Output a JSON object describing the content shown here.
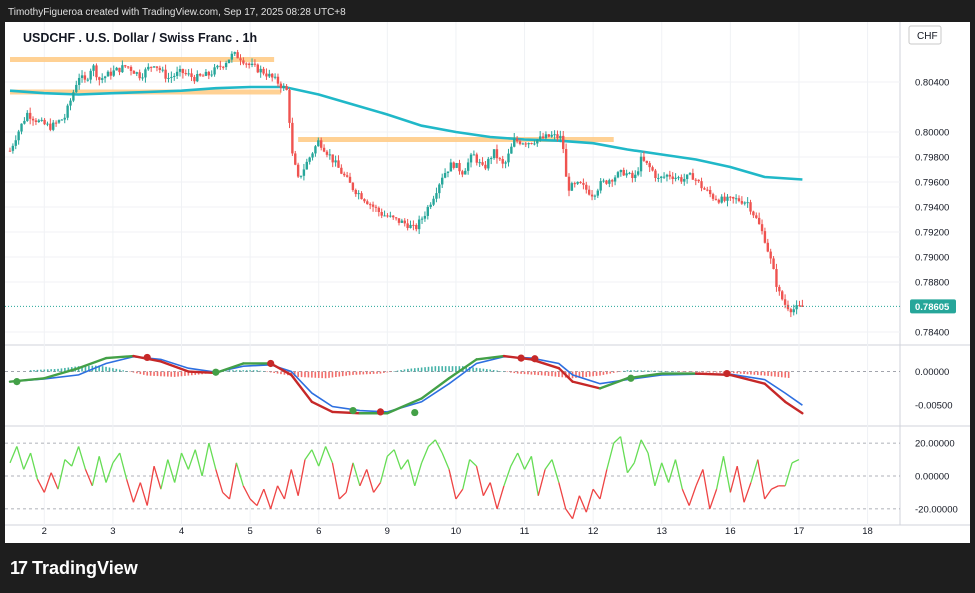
{
  "header": {
    "attribution": "TimothyFigueroa created with TradingView.com, Sep 17, 2025 08:28 UTC+8"
  },
  "footer": {
    "brand": "TradingView",
    "logo_glyph": "17"
  },
  "currency_badge": "CHF",
  "chart_data": [
    {
      "type": "candlestick",
      "title": "USDCHF . U.S. Dollar / Swiss Franc . 1h",
      "y_range": [
        0.7832,
        0.8088
      ],
      "y_ticks": [
        0.804,
        0.8,
        0.798,
        0.796,
        0.794,
        0.792,
        0.79,
        0.788,
        0.784
      ],
      "y_tick_labels": [
        "0.80400",
        "0.80000",
        "0.79800",
        "0.79600",
        "0.79400",
        "0.79200",
        "0.79000",
        "0.78800",
        "0.78400"
      ],
      "x_ticks": [
        "2",
        "3",
        "4",
        "5",
        "6",
        "9",
        "10",
        "11",
        "12",
        "13",
        "16",
        "17",
        "18"
      ],
      "x_tick_positions": [
        0.5,
        1.5,
        2.5,
        3.5,
        4.5,
        5.5,
        6.5,
        7.5,
        8.5,
        9.5,
        10.5,
        11.5,
        12.5
      ],
      "x_range": [
        0.0,
        12.9
      ],
      "last_price": 0.78605,
      "last_price_label": "0.78605",
      "up_color": "#26a69a",
      "down_color": "#ef5350",
      "price_path": [
        [
          0.0,
          0.7985
        ],
        [
          0.1,
          0.7998
        ],
        [
          0.25,
          0.8015
        ],
        [
          0.45,
          0.8007
        ],
        [
          0.6,
          0.8004
        ],
        [
          0.8,
          0.8012
        ],
        [
          0.9,
          0.8028
        ],
        [
          1.0,
          0.8045
        ],
        [
          1.1,
          0.804
        ],
        [
          1.2,
          0.8054
        ],
        [
          1.3,
          0.8042
        ],
        [
          1.5,
          0.8048
        ],
        [
          1.7,
          0.8053
        ],
        [
          1.9,
          0.8045
        ],
        [
          2.1,
          0.8055
        ],
        [
          2.3,
          0.8043
        ],
        [
          2.5,
          0.8048
        ],
        [
          2.7,
          0.8043
        ],
        [
          2.9,
          0.8046
        ],
        [
          3.1,
          0.8054
        ],
        [
          3.25,
          0.8062
        ],
        [
          3.35,
          0.806
        ],
        [
          3.5,
          0.8053
        ],
        [
          3.7,
          0.8048
        ],
        [
          3.9,
          0.804
        ],
        [
          4.05,
          0.8032
        ],
        [
          4.1,
          0.7985
        ],
        [
          4.2,
          0.7962
        ],
        [
          4.35,
          0.7978
        ],
        [
          4.5,
          0.7993
        ],
        [
          4.65,
          0.7982
        ],
        [
          4.8,
          0.797
        ],
        [
          5.0,
          0.7955
        ],
        [
          5.2,
          0.7945
        ],
        [
          5.4,
          0.7935
        ],
        [
          5.6,
          0.793
        ],
        [
          5.8,
          0.7926
        ],
        [
          5.9,
          0.7922
        ],
        [
          6.05,
          0.7935
        ],
        [
          6.2,
          0.7952
        ],
        [
          6.3,
          0.7965
        ],
        [
          6.45,
          0.7975
        ],
        [
          6.6,
          0.7968
        ],
        [
          6.75,
          0.7982
        ],
        [
          6.9,
          0.797
        ],
        [
          7.05,
          0.7984
        ],
        [
          7.2,
          0.7972
        ],
        [
          7.35,
          0.7993
        ],
        [
          7.55,
          0.7992
        ],
        [
          7.7,
          0.7994
        ],
        [
          7.9,
          0.7997
        ],
        [
          8.05,
          0.7995
        ],
        [
          8.12,
          0.7955
        ],
        [
          8.3,
          0.7958
        ],
        [
          8.5,
          0.795
        ],
        [
          8.6,
          0.7958
        ],
        [
          8.8,
          0.7964
        ],
        [
          8.95,
          0.7968
        ],
        [
          9.1,
          0.7962
        ],
        [
          9.2,
          0.7978
        ],
        [
          9.35,
          0.797
        ],
        [
          9.45,
          0.7962
        ],
        [
          9.6,
          0.7966
        ],
        [
          9.8,
          0.7962
        ],
        [
          9.95,
          0.7965
        ],
        [
          10.1,
          0.7955
        ],
        [
          10.25,
          0.7948
        ],
        [
          10.4,
          0.7945
        ],
        [
          10.6,
          0.7946
        ],
        [
          10.75,
          0.7944
        ],
        [
          10.9,
          0.7928
        ],
        [
          11.0,
          0.7915
        ],
        [
          11.1,
          0.7895
        ],
        [
          11.2,
          0.7872
        ],
        [
          11.3,
          0.7862
        ],
        [
          11.4,
          0.7858
        ],
        [
          11.55,
          0.786
        ]
      ],
      "ma_path": [
        [
          0.0,
          0.8033
        ],
        [
          0.5,
          0.8031
        ],
        [
          1.0,
          0.803
        ],
        [
          1.5,
          0.8031
        ],
        [
          2.0,
          0.8032
        ],
        [
          2.5,
          0.8033
        ],
        [
          3.0,
          0.8035
        ],
        [
          3.5,
          0.8036
        ],
        [
          4.0,
          0.8036
        ],
        [
          4.5,
          0.803
        ],
        [
          5.0,
          0.8022
        ],
        [
          5.5,
          0.8014
        ],
        [
          6.0,
          0.8005
        ],
        [
          6.5,
          0.8
        ],
        [
          7.0,
          0.7996
        ],
        [
          7.5,
          0.7994
        ],
        [
          8.0,
          0.7993
        ],
        [
          8.5,
          0.7991
        ],
        [
          9.0,
          0.7986
        ],
        [
          9.5,
          0.7982
        ],
        [
          10.0,
          0.7978
        ],
        [
          10.5,
          0.7972
        ],
        [
          11.0,
          0.7964
        ],
        [
          11.55,
          0.7962
        ]
      ],
      "ma_color": "#20b8c8",
      "zones": [
        {
          "x0": 0.0,
          "x1": 3.85,
          "y": 0.8058
        },
        {
          "x0": 0.0,
          "x1": 3.95,
          "y": 0.8032
        },
        {
          "x0": 4.2,
          "x1": 8.8,
          "y": 0.7994
        }
      ],
      "zone_color": "#ffcc88"
    },
    {
      "type": "macd",
      "y_range": [
        -0.0075,
        0.0035
      ],
      "y_ticks": [
        0.0,
        -0.005
      ],
      "y_tick_labels": [
        "0.00000",
        "-0.00500"
      ],
      "macd_line": [
        [
          0.0,
          -0.0015
        ],
        [
          0.5,
          -0.001
        ],
        [
          1.0,
          0.0005
        ],
        [
          1.4,
          0.002
        ],
        [
          1.8,
          0.0023
        ],
        [
          2.2,
          0.0015
        ],
        [
          2.6,
          0.0
        ],
        [
          3.0,
          -0.0002
        ],
        [
          3.4,
          0.0012
        ],
        [
          3.8,
          0.0012
        ],
        [
          4.1,
          -0.0005
        ],
        [
          4.4,
          -0.0045
        ],
        [
          4.7,
          -0.006
        ],
        [
          5.1,
          -0.0062
        ],
        [
          5.5,
          -0.0062
        ],
        [
          6.0,
          -0.004
        ],
        [
          6.4,
          -0.001
        ],
        [
          6.8,
          0.0018
        ],
        [
          7.2,
          0.0023
        ],
        [
          7.6,
          0.0018
        ],
        [
          8.0,
          0.0005
        ],
        [
          8.2,
          -0.0015
        ],
        [
          8.6,
          -0.0025
        ],
        [
          9.0,
          -0.001
        ],
        [
          9.5,
          -0.0003
        ],
        [
          10.0,
          -0.0003
        ],
        [
          10.5,
          -0.0005
        ],
        [
          11.0,
          -0.0018
        ],
        [
          11.3,
          -0.0045
        ],
        [
          11.55,
          -0.0062
        ]
      ],
      "signal_line": [
        [
          0.0,
          -0.0015
        ],
        [
          0.5,
          -0.0011
        ],
        [
          1.0,
          -0.0005
        ],
        [
          1.4,
          0.0012
        ],
        [
          1.8,
          0.0022
        ],
        [
          2.2,
          0.0018
        ],
        [
          2.6,
          0.0005
        ],
        [
          3.0,
          -0.0001
        ],
        [
          3.4,
          0.0008
        ],
        [
          3.8,
          0.001
        ],
        [
          4.1,
          0.0
        ],
        [
          4.4,
          -0.0032
        ],
        [
          4.7,
          -0.0052
        ],
        [
          5.1,
          -0.0058
        ],
        [
          5.5,
          -0.006
        ],
        [
          6.0,
          -0.0045
        ],
        [
          6.4,
          -0.0018
        ],
        [
          6.8,
          0.0012
        ],
        [
          7.2,
          0.0022
        ],
        [
          7.6,
          0.002
        ],
        [
          8.0,
          0.0012
        ],
        [
          8.2,
          -0.0005
        ],
        [
          8.6,
          -0.0018
        ],
        [
          9.0,
          -0.0012
        ],
        [
          9.5,
          -0.0005
        ],
        [
          10.0,
          -0.0004
        ],
        [
          10.5,
          -0.0004
        ],
        [
          11.0,
          -0.0012
        ],
        [
          11.3,
          -0.0032
        ],
        [
          11.55,
          -0.005
        ]
      ],
      "hist": [
        [
          0.3,
          0.0002
        ],
        [
          0.7,
          0.0004
        ],
        [
          1.0,
          0.0008
        ],
        [
          1.3,
          0.0009
        ],
        [
          1.6,
          0.0003
        ],
        [
          2.0,
          -0.0006
        ],
        [
          2.4,
          -0.0008
        ],
        [
          2.8,
          -0.0004
        ],
        [
          3.2,
          0.0002
        ],
        [
          3.6,
          0.0002
        ],
        [
          4.2,
          -0.0008
        ],
        [
          4.6,
          -0.001
        ],
        [
          5.0,
          -0.0005
        ],
        [
          5.4,
          -0.0003
        ],
        [
          5.8,
          0.0004
        ],
        [
          6.2,
          0.0008
        ],
        [
          6.6,
          0.0008
        ],
        [
          7.0,
          0.0003
        ],
        [
          7.4,
          -0.0003
        ],
        [
          7.8,
          -0.0006
        ],
        [
          8.2,
          -0.001
        ],
        [
          8.6,
          -0.0006
        ],
        [
          9.0,
          0.0002
        ],
        [
          9.5,
          0.0001
        ],
        [
          10.0,
          -0.0001
        ],
        [
          10.5,
          -0.0002
        ],
        [
          11.0,
          -0.0006
        ],
        [
          11.4,
          -0.001
        ]
      ],
      "cross_markers": [
        [
          0.1,
          -0.0015,
          "green"
        ],
        [
          2.0,
          0.0021,
          "red"
        ],
        [
          3.0,
          -0.0001,
          "green"
        ],
        [
          3.8,
          0.0012,
          "red"
        ],
        [
          5.0,
          -0.0058,
          "green"
        ],
        [
          5.4,
          -0.006,
          "red"
        ],
        [
          5.9,
          -0.0061,
          "green"
        ],
        [
          7.45,
          0.002,
          "red"
        ],
        [
          7.65,
          0.0019,
          "red"
        ],
        [
          9.05,
          -0.001,
          "green"
        ],
        [
          10.45,
          -0.0003,
          "red"
        ]
      ],
      "macd_color": "#c62828",
      "signal_color": "#2d6fe0",
      "macd_up_color": "#43a047"
    },
    {
      "type": "oscillator",
      "y_range": [
        -28.0,
        28.0
      ],
      "y_ticks": [
        20.0,
        0.0,
        -20.0
      ],
      "y_tick_labels": [
        "20.00000",
        "0.00000",
        "-20.00000"
      ],
      "series": [
        [
          0.0,
          8
        ],
        [
          0.1,
          18
        ],
        [
          0.2,
          4
        ],
        [
          0.3,
          14
        ],
        [
          0.4,
          -2
        ],
        [
          0.5,
          -10
        ],
        [
          0.6,
          2
        ],
        [
          0.7,
          -8
        ],
        [
          0.8,
          10
        ],
        [
          0.9,
          6
        ],
        [
          1.0,
          18
        ],
        [
          1.1,
          4
        ],
        [
          1.2,
          -6
        ],
        [
          1.3,
          12
        ],
        [
          1.4,
          -4
        ],
        [
          1.5,
          8
        ],
        [
          1.6,
          14
        ],
        [
          1.7,
          -2
        ],
        [
          1.8,
          -16
        ],
        [
          1.9,
          -4
        ],
        [
          2.0,
          -18
        ],
        [
          2.1,
          6
        ],
        [
          2.2,
          -8
        ],
        [
          2.3,
          10
        ],
        [
          2.4,
          -4
        ],
        [
          2.5,
          14
        ],
        [
          2.6,
          4
        ],
        [
          2.7,
          16
        ],
        [
          2.8,
          0
        ],
        [
          2.9,
          20
        ],
        [
          3.0,
          4
        ],
        [
          3.1,
          -10
        ],
        [
          3.2,
          -14
        ],
        [
          3.3,
          8
        ],
        [
          3.4,
          -6
        ],
        [
          3.5,
          -14
        ],
        [
          3.6,
          -18
        ],
        [
          3.7,
          -8
        ],
        [
          3.8,
          -20
        ],
        [
          3.9,
          -6
        ],
        [
          4.0,
          -14
        ],
        [
          4.1,
          4
        ],
        [
          4.2,
          -12
        ],
        [
          4.3,
          10
        ],
        [
          4.4,
          16
        ],
        [
          4.5,
          6
        ],
        [
          4.6,
          18
        ],
        [
          4.7,
          8
        ],
        [
          4.8,
          -14
        ],
        [
          4.9,
          -10
        ],
        [
          5.0,
          8
        ],
        [
          5.1,
          -6
        ],
        [
          5.2,
          4
        ],
        [
          5.3,
          -10
        ],
        [
          5.4,
          -4
        ],
        [
          5.5,
          12
        ],
        [
          5.6,
          16
        ],
        [
          5.7,
          4
        ],
        [
          5.8,
          10
        ],
        [
          5.9,
          -6
        ],
        [
          6.0,
          8
        ],
        [
          6.1,
          18
        ],
        [
          6.2,
          22
        ],
        [
          6.3,
          14
        ],
        [
          6.4,
          4
        ],
        [
          6.5,
          -14
        ],
        [
          6.6,
          -8
        ],
        [
          6.7,
          10
        ],
        [
          6.8,
          6
        ],
        [
          6.9,
          -12
        ],
        [
          7.0,
          -4
        ],
        [
          7.1,
          -20
        ],
        [
          7.2,
          -6
        ],
        [
          7.3,
          6
        ],
        [
          7.4,
          14
        ],
        [
          7.5,
          4
        ],
        [
          7.6,
          12
        ],
        [
          7.7,
          -12
        ],
        [
          7.8,
          4
        ],
        [
          7.9,
          10
        ],
        [
          8.0,
          -4
        ],
        [
          8.1,
          -20
        ],
        [
          8.2,
          -26
        ],
        [
          8.3,
          -12
        ],
        [
          8.4,
          -22
        ],
        [
          8.5,
          -8
        ],
        [
          8.6,
          -14
        ],
        [
          8.7,
          4
        ],
        [
          8.8,
          20
        ],
        [
          8.9,
          24
        ],
        [
          9.0,
          2
        ],
        [
          9.1,
          8
        ],
        [
          9.2,
          22
        ],
        [
          9.3,
          14
        ],
        [
          9.4,
          -6
        ],
        [
          9.5,
          8
        ],
        [
          9.6,
          -4
        ],
        [
          9.7,
          10
        ],
        [
          9.8,
          -8
        ],
        [
          9.9,
          -18
        ],
        [
          10.0,
          -6
        ],
        [
          10.1,
          4
        ],
        [
          10.2,
          -20
        ],
        [
          10.3,
          -8
        ],
        [
          10.4,
          12
        ],
        [
          10.5,
          -10
        ],
        [
          10.6,
          6
        ],
        [
          10.7,
          -16
        ],
        [
          10.8,
          -4
        ],
        [
          10.9,
          10
        ],
        [
          11.0,
          -14
        ],
        [
          11.1,
          -8
        ],
        [
          11.2,
          -6
        ],
        [
          11.3,
          -6
        ],
        [
          11.4,
          8
        ],
        [
          11.5,
          10
        ]
      ],
      "pos_color": "#66dd55",
      "neg_color": "#ee4444"
    }
  ]
}
